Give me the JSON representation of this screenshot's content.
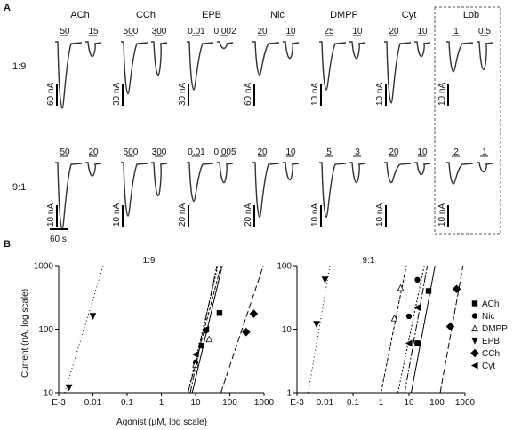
{
  "panel_a": {
    "label": "A",
    "agonists": [
      {
        "name": "ACh",
        "top_doses": [
          "50",
          "15"
        ],
        "top_scale": "60 nA",
        "bottom_doses": [
          "50",
          "20"
        ],
        "bottom_scale": "10 nA"
      },
      {
        "name": "CCh",
        "top_doses": [
          "500",
          "300"
        ],
        "top_scale": "30 nA",
        "bottom_doses": [
          "500",
          "300"
        ],
        "bottom_scale": "10 nA"
      },
      {
        "name": "EPB",
        "top_doses": [
          "0.01",
          "0.002"
        ],
        "top_scale": "30 nA",
        "bottom_doses": [
          "0.01",
          "0.005"
        ],
        "bottom_scale": "20 nA"
      },
      {
        "name": "Nic",
        "top_doses": [
          "20",
          "10"
        ],
        "top_scale": "60 nA",
        "bottom_doses": [
          "20",
          "10"
        ],
        "bottom_scale": "20 nA"
      },
      {
        "name": "DMPP",
        "top_doses": [
          "25",
          "10"
        ],
        "top_scale": "10 nA",
        "bottom_doses": [
          "5",
          "3"
        ],
        "bottom_scale": "10 nA"
      },
      {
        "name": "Cyt",
        "top_doses": [
          "20",
          "10"
        ],
        "top_scale": "10 nA",
        "bottom_doses": [
          "20",
          "10"
        ],
        "bottom_scale": "10 nA"
      },
      {
        "name": "Lob",
        "top_doses": [
          "1",
          "0.5"
        ],
        "top_scale": "10 nA",
        "bottom_doses": [
          "2",
          "1"
        ],
        "bottom_scale": "10 nA"
      }
    ],
    "rows": [
      "1:9",
      "9:1"
    ],
    "time_scale": "60 s",
    "trace_depth": {
      "top": [
        [
          1.0,
          0.22
        ],
        [
          0.78,
          0.5
        ],
        [
          0.72,
          0.1
        ],
        [
          0.5,
          0.25
        ],
        [
          0.72,
          0.25
        ],
        [
          0.92,
          0.22
        ],
        [
          0.45,
          0.42
        ]
      ],
      "bottom": [
        [
          1.0,
          0.2
        ],
        [
          0.8,
          0.5
        ],
        [
          0.58,
          0.3
        ],
        [
          0.82,
          0.26
        ],
        [
          0.82,
          0.3
        ],
        [
          0.3,
          0.18
        ],
        [
          0.32,
          0.14
        ]
      ]
    }
  },
  "panel_b_label": "B",
  "chart_data": [
    {
      "type": "scatter",
      "title": "1:9",
      "xlabel": "Agonist (µM, log scale)",
      "ylabel": "Current (nA, log scale)",
      "x_scale": "log",
      "y_scale": "log",
      "xlim": [
        0.001,
        1000
      ],
      "ylim": [
        10,
        1000
      ],
      "x_ticks": [
        "E-3",
        "0.01",
        "0.1",
        "1",
        "10",
        "100",
        "1000"
      ],
      "y_ticks": [
        "10",
        "100",
        "1000"
      ],
      "series": [
        {
          "name": "ACh",
          "marker": "square",
          "points": [
            [
              15,
              55
            ],
            [
              50,
              180
            ]
          ],
          "fit": [
            [
              8,
              10
            ],
            [
              60,
              1000
            ]
          ]
        },
        {
          "name": "Nic",
          "marker": "circle",
          "points": [
            [
              10,
              30
            ],
            [
              20,
              95
            ]
          ],
          "fit": [
            [
              6,
              10
            ],
            [
              45,
              1000
            ]
          ]
        },
        {
          "name": "DMPP",
          "marker": "triangle-up",
          "points": [
            [
              10,
              28
            ],
            [
              25,
              70
            ]
          ],
          "fit": [
            [
              6,
              10
            ],
            [
              55,
              1000
            ]
          ]
        },
        {
          "name": "EPB",
          "marker": "triangle-down",
          "points": [
            [
              0.002,
              12
            ],
            [
              0.01,
              160
            ]
          ],
          "fit": [
            [
              0.0015,
              10
            ],
            [
              0.02,
              1000
            ]
          ]
        },
        {
          "name": "CCh",
          "marker": "diamond",
          "points": [
            [
              300,
              90
            ],
            [
              500,
              175
            ]
          ],
          "fit": [
            [
              55,
              10
            ],
            [
              950,
              1000
            ]
          ]
        },
        {
          "name": "Cyt",
          "marker": "triangle-left",
          "points": [
            [
              10,
              40
            ],
            [
              20,
              100
            ]
          ],
          "fit": [
            [
              7,
              10
            ],
            [
              42,
              1000
            ]
          ]
        }
      ]
    },
    {
      "type": "scatter",
      "title": "9:1",
      "xlabel": "",
      "ylabel": "",
      "x_scale": "log",
      "y_scale": "log",
      "xlim": [
        0.001,
        1000
      ],
      "ylim": [
        1,
        100
      ],
      "x_ticks": [
        "E-3",
        "0.01",
        "0.1",
        "1",
        "10",
        "100",
        "1000"
      ],
      "y_ticks": [
        "1",
        "10",
        "100"
      ],
      "series": [
        {
          "name": "ACh",
          "marker": "square",
          "points": [
            [
              20,
              6
            ],
            [
              50,
              40
            ]
          ],
          "fit": [
            [
              12,
              1
            ],
            [
              85,
              100
            ]
          ]
        },
        {
          "name": "Nic",
          "marker": "circle",
          "points": [
            [
              10,
              16
            ],
            [
              20,
              60
            ]
          ],
          "fit": [
            [
              4,
              1
            ],
            [
              35,
              100
            ]
          ]
        },
        {
          "name": "DMPP",
          "marker": "triangle-up",
          "points": [
            [
              3,
              15
            ],
            [
              5,
              45
            ]
          ],
          "fit": [
            [
              1,
              1
            ],
            [
              8,
              100
            ]
          ]
        },
        {
          "name": "EPB",
          "marker": "triangle-down",
          "points": [
            [
              0.005,
              12
            ],
            [
              0.01,
              60
            ]
          ],
          "fit": [
            [
              0.0025,
              1
            ],
            [
              0.015,
              100
            ]
          ]
        },
        {
          "name": "CCh",
          "marker": "diamond",
          "points": [
            [
              300,
              11
            ],
            [
              500,
              43
            ]
          ],
          "fit": [
            [
              130,
              1
            ],
            [
              850,
              100
            ]
          ]
        },
        {
          "name": "Cyt",
          "marker": "triangle-left",
          "points": [
            [
              10,
              6
            ],
            [
              20,
              22
            ]
          ],
          "fit": [
            [
              7,
              1
            ],
            [
              45,
              100
            ]
          ]
        }
      ]
    }
  ],
  "legend": [
    {
      "name": "ACh",
      "marker": "square"
    },
    {
      "name": "Nic",
      "marker": "circle"
    },
    {
      "name": "DMPP",
      "marker": "triangle-up"
    },
    {
      "name": "EPB",
      "marker": "triangle-down"
    },
    {
      "name": "CCh",
      "marker": "diamond"
    },
    {
      "name": "Cyt",
      "marker": "triangle-left"
    }
  ],
  "fit_dash": {
    "ACh": "",
    "Nic": "2,2",
    "DMPP": "4,2",
    "EPB": "1,3",
    "CCh": "7,3",
    "Cyt": "8,2,2,2"
  }
}
